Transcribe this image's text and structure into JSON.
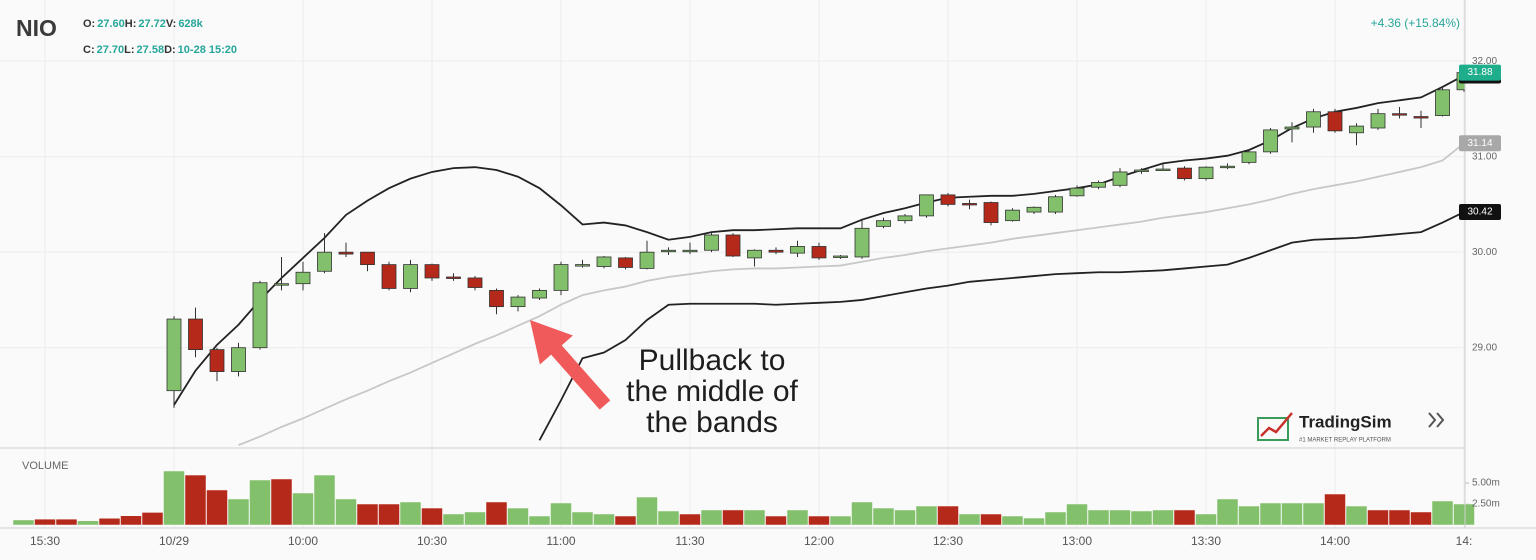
{
  "chart_data": {
    "type": "candlestick",
    "symbol": "NIO",
    "header_rows": [
      [
        {
          "label": "O:",
          "value": "27.60"
        },
        {
          "label": "H:",
          "value": "27.72"
        },
        {
          "label": "V:",
          "value": "628k"
        }
      ],
      [
        {
          "label": "C:",
          "value": "27.70"
        },
        {
          "label": "L:",
          "value": "27.58"
        },
        {
          "label": "D:",
          "value": "10-28 15:20"
        }
      ]
    ],
    "change": "+4.36 (+15.84%)",
    "annotation": [
      "Pullback to",
      "the middle of",
      "the bands"
    ],
    "branding": {
      "name": "TradingSim",
      "tagline": "#1 MARKET REPLAY PLATFORM"
    },
    "categories": [
      null,
      "15:30",
      null,
      null,
      null,
      null,
      null,
      "10/29",
      null,
      null,
      null,
      null,
      null,
      "10:00",
      null,
      null,
      null,
      null,
      null,
      "10:30",
      null,
      null,
      null,
      null,
      null,
      "11:00",
      null,
      null,
      null,
      null,
      null,
      "11:30",
      null,
      null,
      null,
      null,
      null,
      "12:00",
      null,
      null,
      null,
      null,
      null,
      "12:30",
      null,
      null,
      null,
      null,
      null,
      "13:00",
      null,
      null,
      null,
      null,
      null,
      "13:30",
      null,
      null,
      null,
      null,
      null,
      "14:00",
      null,
      null,
      null,
      null,
      null,
      "14:"
    ],
    "open": [
      null,
      null,
      null,
      null,
      null,
      null,
      null,
      28.55,
      29.3,
      28.98,
      28.75,
      29.0,
      29.66,
      29.67,
      29.8,
      30.0,
      30.0,
      29.87,
      29.62,
      29.87,
      29.74,
      29.73,
      29.6,
      29.43,
      29.52,
      29.6,
      29.86,
      29.85,
      29.94,
      29.83,
      30.01,
      30.02,
      30.02,
      30.18,
      29.94,
      30.02,
      29.99,
      30.06,
      29.95,
      29.95,
      30.27,
      30.33,
      30.38,
      30.6,
      30.51,
      30.52,
      30.33,
      30.42,
      30.42,
      30.59,
      30.68,
      30.7,
      30.85,
      30.86,
      30.88,
      30.77,
      30.89,
      30.94,
      31.05,
      31.29,
      31.31,
      31.47,
      31.25,
      31.3,
      31.45,
      31.42,
      31.43,
      31.7
    ],
    "high": [
      null,
      null,
      null,
      null,
      null,
      null,
      null,
      29.33,
      29.42,
      29.0,
      29.05,
      29.7,
      29.95,
      29.9,
      30.2,
      30.1,
      30.0,
      29.9,
      29.92,
      29.88,
      29.78,
      29.75,
      29.62,
      29.55,
      29.62,
      29.9,
      29.92,
      29.96,
      29.95,
      30.12,
      30.05,
      30.1,
      30.2,
      30.2,
      30.03,
      30.05,
      30.12,
      30.1,
      29.97,
      30.35,
      30.36,
      30.4,
      30.6,
      30.62,
      30.55,
      30.53,
      30.46,
      30.48,
      30.6,
      30.7,
      30.75,
      30.88,
      30.88,
      30.92,
      30.9,
      30.9,
      30.93,
      31.07,
      31.3,
      31.36,
      31.5,
      31.5,
      31.35,
      31.5,
      31.52,
      31.48,
      31.72,
      31.95
    ],
    "low": [
      null,
      null,
      null,
      null,
      null,
      null,
      null,
      28.37,
      28.9,
      28.65,
      28.7,
      28.98,
      29.6,
      29.6,
      29.78,
      29.95,
      29.8,
      29.6,
      29.58,
      29.7,
      29.7,
      29.6,
      29.35,
      29.38,
      29.5,
      29.55,
      29.84,
      29.83,
      29.82,
      29.82,
      29.97,
      29.98,
      30.0,
      29.95,
      29.85,
      29.98,
      29.95,
      29.92,
      29.93,
      29.93,
      30.25,
      30.3,
      30.36,
      30.48,
      30.45,
      30.28,
      30.32,
      30.4,
      30.4,
      30.58,
      30.66,
      30.68,
      30.82,
      30.85,
      30.75,
      30.75,
      30.87,
      30.92,
      31.03,
      31.15,
      31.25,
      31.25,
      31.12,
      31.28,
      31.4,
      31.3,
      31.42,
      31.68
    ],
    "close": [
      null,
      null,
      null,
      null,
      null,
      null,
      null,
      29.3,
      28.98,
      28.75,
      29.0,
      29.68,
      29.67,
      29.79,
      30.0,
      29.98,
      29.87,
      29.62,
      29.87,
      29.73,
      29.73,
      29.63,
      29.43,
      29.53,
      29.6,
      29.87,
      29.87,
      29.95,
      29.84,
      30.0,
      30.02,
      30.02,
      30.18,
      29.96,
      30.02,
      30.0,
      30.06,
      29.94,
      29.96,
      30.25,
      30.33,
      30.38,
      30.6,
      30.5,
      30.5,
      30.31,
      30.44,
      30.47,
      30.58,
      30.67,
      30.73,
      30.84,
      30.86,
      30.87,
      30.77,
      30.89,
      30.9,
      31.05,
      31.28,
      31.31,
      31.47,
      31.27,
      31.32,
      31.45,
      31.44,
      31.41,
      31.7,
      31.88
    ],
    "up_color": "#82c06c",
    "down_color": "#b5291a",
    "close_tag_color": "#1fae8c",
    "lines": [
      {
        "color": "#222222",
        "tag_color": "#111111",
        "values": [
          null,
          null,
          null,
          null,
          null,
          null,
          null,
          28.4,
          28.76,
          29.03,
          29.24,
          29.5,
          29.73,
          29.94,
          30.15,
          30.39,
          30.54,
          30.67,
          30.77,
          30.84,
          30.88,
          30.89,
          30.86,
          30.79,
          30.67,
          30.49,
          30.29,
          30.31,
          30.28,
          30.21,
          30.13,
          30.16,
          30.21,
          30.23,
          30.23,
          30.24,
          30.25,
          30.25,
          30.25,
          30.34,
          30.41,
          30.46,
          30.52,
          30.57,
          30.58,
          30.59,
          30.59,
          30.61,
          30.64,
          30.67,
          30.71,
          30.79,
          30.86,
          30.93,
          30.96,
          30.98,
          31.01,
          31.07,
          31.17,
          31.3,
          31.4,
          31.47,
          31.51,
          31.56,
          31.59,
          31.62,
          31.73,
          31.85
        ]
      },
      {
        "color": "#c8c8c8",
        "tag_color": "#a8a8a8",
        "values": [
          null,
          null,
          null,
          null,
          null,
          null,
          null,
          null,
          null,
          null,
          27.98,
          28.07,
          28.17,
          28.26,
          28.36,
          28.46,
          28.55,
          28.65,
          28.74,
          28.84,
          28.94,
          29.04,
          29.13,
          29.23,
          29.33,
          29.45,
          29.55,
          29.6,
          29.64,
          29.7,
          29.74,
          29.77,
          29.8,
          29.82,
          29.83,
          29.83,
          29.84,
          29.85,
          29.86,
          29.9,
          29.94,
          29.97,
          30.01,
          30.04,
          30.07,
          30.1,
          30.14,
          30.17,
          30.2,
          30.23,
          30.26,
          30.29,
          30.32,
          30.36,
          30.39,
          30.42,
          30.46,
          30.5,
          30.55,
          30.61,
          30.66,
          30.7,
          30.74,
          30.79,
          30.84,
          30.89,
          30.96,
          31.14
        ]
      },
      {
        "color": "#222222",
        "tag_color": "#111111",
        "values": [
          null,
          null,
          null,
          null,
          null,
          null,
          null,
          null,
          null,
          null,
          null,
          null,
          null,
          null,
          null,
          null,
          null,
          null,
          null,
          null,
          null,
          null,
          null,
          null,
          28.03,
          28.45,
          28.89,
          28.95,
          29.08,
          29.29,
          29.45,
          29.46,
          29.46,
          29.46,
          29.46,
          29.45,
          29.46,
          29.47,
          29.48,
          29.5,
          29.54,
          29.58,
          29.62,
          29.65,
          29.69,
          29.71,
          29.73,
          29.75,
          29.77,
          29.78,
          29.79,
          29.79,
          29.8,
          29.81,
          29.83,
          29.85,
          29.87,
          29.94,
          30.02,
          30.1,
          30.13,
          30.14,
          30.15,
          30.17,
          30.19,
          30.21,
          30.31,
          30.42
        ]
      }
    ],
    "ylim": [
      27.95,
      32.64
    ],
    "yticks": [
      {
        "value": 29,
        "label": "29.00"
      },
      {
        "value": 30,
        "label": "30.00"
      },
      {
        "value": 31,
        "label": "31.00"
      },
      {
        "value": 32,
        "label": "32.00"
      }
    ],
    "grid": true,
    "volume": {
      "label": "VOLUME",
      "values": [
        0.6,
        0.7,
        0.7,
        0.5,
        0.8,
        1.1,
        1.5,
        6.43,
        5.95,
        4.17,
        3.1,
        5.36,
        5.48,
        3.81,
        5.95,
        3.1,
        2.5,
        2.5,
        2.74,
        2.02,
        1.31,
        1.55,
        2.74,
        2.02,
        1.07,
        2.62,
        1.55,
        1.31,
        1.07,
        3.33,
        1.67,
        1.31,
        1.79,
        1.79,
        1.79,
        1.07,
        1.79,
        1.07,
        1.07,
        2.74,
        2.02,
        1.79,
        2.26,
        2.26,
        1.31,
        1.31,
        1.07,
        0.83,
        1.55,
        2.5,
        1.79,
        1.79,
        1.67,
        1.79,
        1.79,
        1.31,
        3.1,
        2.26,
        2.62,
        2.62,
        2.62,
        3.69,
        2.26,
        1.79,
        1.79,
        1.55,
        2.86,
        2.5
      ],
      "colors": [
        "#82c06c",
        "#b5291a",
        "#b5291a",
        "#82c06c",
        "#b5291a",
        "#b5291a",
        "#b5291a",
        "#82c06c",
        "#b5291a",
        "#b5291a",
        "#82c06c",
        "#82c06c",
        "#b5291a",
        "#82c06c",
        "#82c06c",
        "#82c06c",
        "#b5291a",
        "#b5291a",
        "#82c06c",
        "#b5291a",
        "#82c06c",
        "#82c06c",
        "#b5291a",
        "#82c06c",
        "#82c06c",
        "#82c06c",
        "#82c06c",
        "#82c06c",
        "#b5291a",
        "#82c06c",
        "#82c06c",
        "#b5291a",
        "#82c06c",
        "#b5291a",
        "#82c06c",
        "#b5291a",
        "#82c06c",
        "#b5291a",
        "#82c06c",
        "#82c06c",
        "#82c06c",
        "#82c06c",
        "#82c06c",
        "#b5291a",
        "#82c06c",
        "#b5291a",
        "#82c06c",
        "#82c06c",
        "#82c06c",
        "#82c06c",
        "#82c06c",
        "#82c06c",
        "#82c06c",
        "#82c06c",
        "#b5291a",
        "#82c06c",
        "#82c06c",
        "#82c06c",
        "#82c06c",
        "#82c06c",
        "#82c06c",
        "#b5291a",
        "#82c06c",
        "#b5291a",
        "#b5291a",
        "#b5291a",
        "#82c06c",
        "#82c06c"
      ],
      "ylim": [
        0,
        9.17
      ],
      "yticks": [
        {
          "value": 2.5,
          "label": "2.50m"
        },
        {
          "value": 5,
          "label": "5.00m"
        }
      ]
    }
  }
}
